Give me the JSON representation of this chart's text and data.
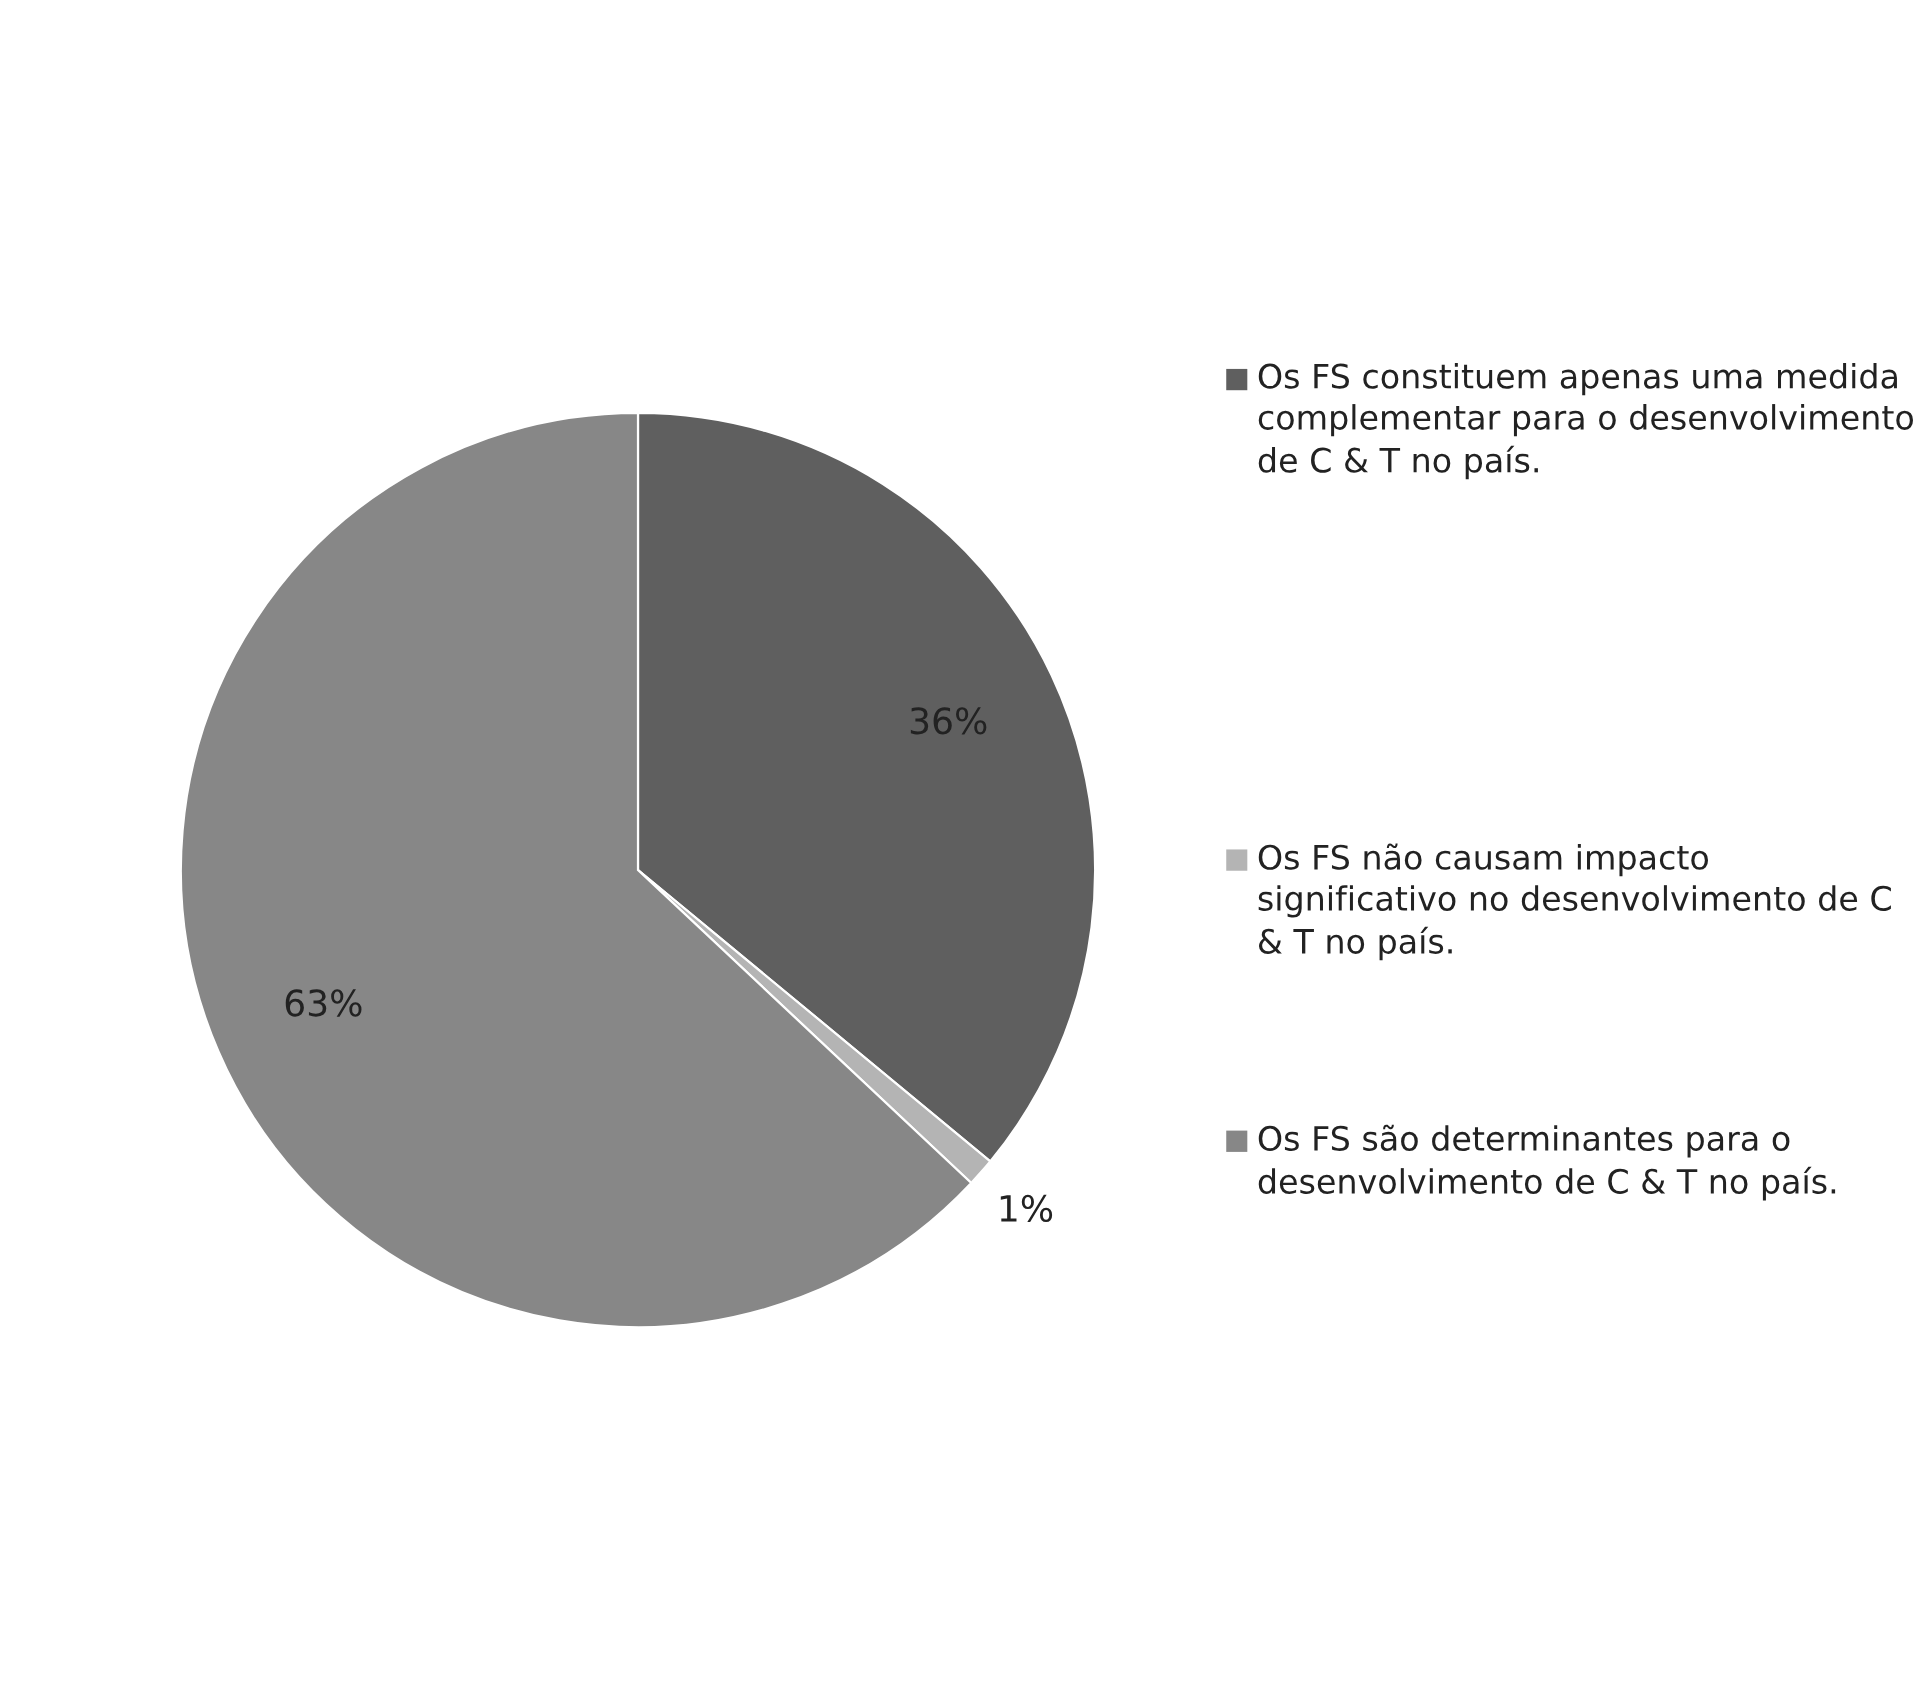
{
  "chart_data": {
    "type": "pie",
    "categories": [
      "Os FS constituem apenas uma medida complementar para o desenvolvimento de C & T no país.",
      "Os FS não causam impacto significativo no desenvolvimento de C & T no país.",
      "Os FS são determinantes para o desenvolvimento de C & T no país."
    ],
    "values": [
      36,
      1,
      63
    ],
    "value_labels": [
      "36%",
      "1%",
      "63%"
    ],
    "colors": [
      "#5f5f5f",
      "#b4b4b4",
      "#878787"
    ],
    "legend": "right"
  }
}
